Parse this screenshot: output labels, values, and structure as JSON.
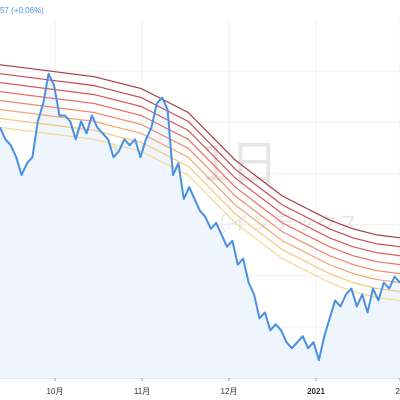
{
  "legend": {
    "value_text": "57 (+0.06%)"
  },
  "watermark": {
    "symbol_interval": "DXY, 1日",
    "name": "ドル指数先物（インデックス"
  },
  "colors": {
    "price": "#4a90e2",
    "price_fill": "#eef5fc",
    "ribbon": [
      "#f2d98b",
      "#f5c77a",
      "#f3a66e",
      "#ee8c68",
      "#e67362",
      "#d9585a",
      "#c44a4f",
      "#a63c43"
    ]
  },
  "chart_data": {
    "type": "line",
    "x_ticks": [
      "10月",
      "11月",
      "12月",
      "2021",
      "2"
    ],
    "x_tick_bold": [
      false,
      false,
      false,
      true,
      false
    ],
    "ylim": [
      89.0,
      95.0
    ],
    "grid": true,
    "series": [
      {
        "values": [
          93.2,
          93.0,
          92.9,
          92.7,
          92.4,
          92.6,
          92.7,
          93.3,
          93.6,
          94.1,
          93.9,
          93.4,
          93.4,
          93.3,
          93.0,
          93.3,
          93.1,
          93.4,
          93.2,
          93.1,
          93.0,
          92.7,
          92.8,
          93.0,
          92.9,
          93.0,
          92.7,
          93.0,
          93.2,
          93.6,
          93.7,
          93.5,
          92.4,
          92.6,
          92.0,
          92.2,
          92.0,
          91.8,
          91.7,
          91.5,
          91.6,
          91.4,
          91.2,
          91.3,
          90.9,
          91.0,
          90.6,
          90.4,
          90.0,
          90.1,
          89.8,
          89.9,
          89.8,
          89.6,
          89.5,
          89.6,
          89.7,
          89.5,
          89.6,
          89.3,
          89.7,
          90.0,
          90.3,
          90.2,
          90.4,
          90.5,
          90.2,
          90.4,
          90.1,
          90.5,
          90.3,
          90.6,
          90.5,
          90.7,
          90.6
        ]
      }
    ],
    "ribbon_series": [
      {
        "values": [
          93.2,
          93.15,
          93.1,
          93.05,
          93.0,
          92.9,
          92.8,
          92.6,
          92.4,
          92.0,
          91.6,
          91.3,
          91.0,
          90.8,
          90.6,
          90.45,
          90.35,
          90.3
        ]
      },
      {
        "values": [
          93.35,
          93.3,
          93.25,
          93.2,
          93.15,
          93.05,
          92.95,
          92.75,
          92.55,
          92.15,
          91.75,
          91.45,
          91.15,
          90.95,
          90.75,
          90.6,
          90.5,
          90.45
        ]
      },
      {
        "values": [
          93.5,
          93.45,
          93.4,
          93.35,
          93.3,
          93.2,
          93.1,
          92.9,
          92.7,
          92.3,
          91.9,
          91.6,
          91.3,
          91.1,
          90.9,
          90.75,
          90.65,
          90.6
        ]
      },
      {
        "values": [
          93.65,
          93.6,
          93.55,
          93.5,
          93.45,
          93.35,
          93.25,
          93.05,
          92.85,
          92.45,
          92.05,
          91.75,
          91.45,
          91.25,
          91.05,
          90.9,
          90.8,
          90.75
        ]
      },
      {
        "values": [
          93.8,
          93.75,
          93.7,
          93.65,
          93.6,
          93.5,
          93.4,
          93.2,
          93.0,
          92.6,
          92.2,
          91.9,
          91.6,
          91.4,
          91.2,
          91.05,
          90.95,
          90.9
        ]
      },
      {
        "values": [
          93.95,
          93.9,
          93.85,
          93.8,
          93.75,
          93.65,
          93.55,
          93.35,
          93.15,
          92.75,
          92.35,
          92.05,
          91.75,
          91.55,
          91.35,
          91.2,
          91.1,
          91.05
        ]
      },
      {
        "values": [
          94.1,
          94.05,
          94.0,
          93.95,
          93.9,
          93.8,
          93.7,
          93.5,
          93.3,
          92.9,
          92.5,
          92.2,
          91.9,
          91.7,
          91.5,
          91.35,
          91.25,
          91.2
        ]
      },
      {
        "values": [
          94.25,
          94.2,
          94.15,
          94.1,
          94.05,
          93.95,
          93.85,
          93.65,
          93.45,
          93.05,
          92.65,
          92.35,
          92.05,
          91.85,
          91.65,
          91.5,
          91.4,
          91.35
        ]
      }
    ]
  }
}
